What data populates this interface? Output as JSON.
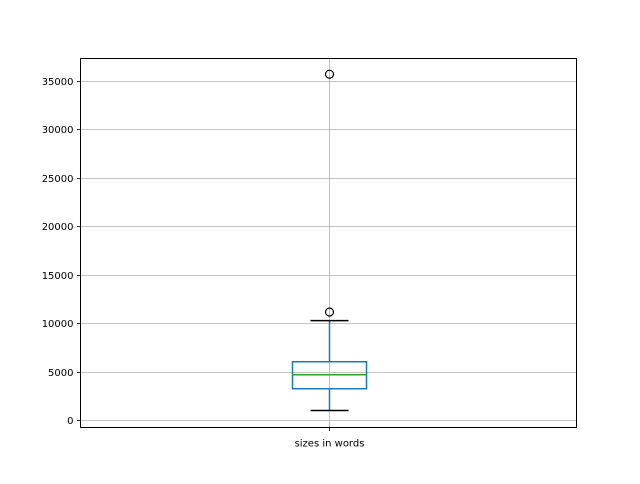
{
  "chart_data": {
    "type": "boxplot",
    "title": "",
    "xlabel": "",
    "ylabel": "",
    "categories": [
      "sizes in words"
    ],
    "boxes": [
      {
        "label": "sizes in words",
        "whisker_low": 1030,
        "q1": 3270,
        "median": 4710,
        "q3": 6050,
        "whisker_high": 10280,
        "outliers": [
          11170,
          35650
        ]
      }
    ],
    "ylim": [
      -722,
      37268
    ],
    "yticks": [
      0,
      5000,
      10000,
      15000,
      20000,
      25000,
      30000,
      35000
    ],
    "ytick_labels": [
      "0",
      "5000",
      "10000",
      "15000",
      "20000",
      "25000",
      "30000",
      "35000"
    ],
    "grid": true,
    "colors": {
      "box": "#1f77b4",
      "median": "#2ca02c",
      "whisker_cap": "#000000",
      "grid": "#b0b0b0"
    }
  }
}
